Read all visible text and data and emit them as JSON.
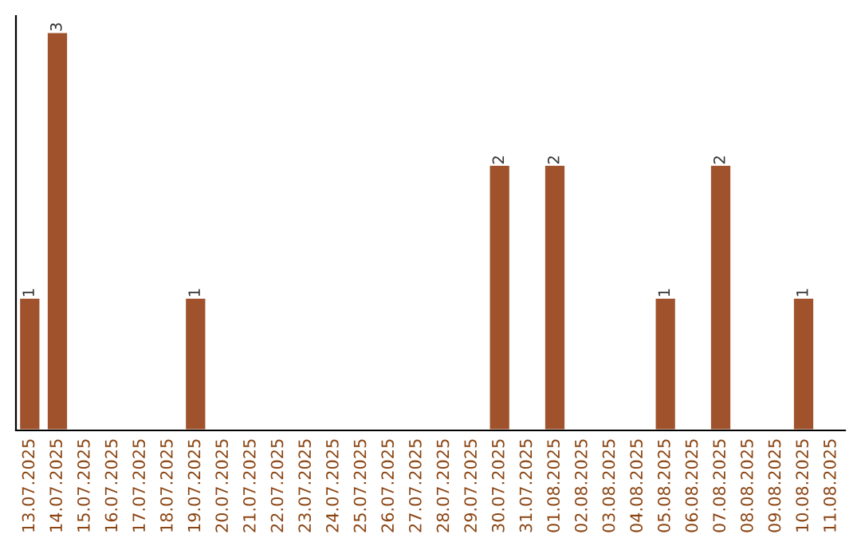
{
  "chart_data": {
    "type": "bar",
    "categories": [
      "13.07.2025",
      "14.07.2025",
      "15.07.2025",
      "16.07.2025",
      "17.07.2025",
      "18.07.2025",
      "19.07.2025",
      "20.07.2025",
      "21.07.2025",
      "22.07.2025",
      "23.07.2025",
      "24.07.2025",
      "25.07.2025",
      "26.07.2025",
      "27.07.2025",
      "28.07.2025",
      "29.07.2025",
      "30.07.2025",
      "31.07.2025",
      "01.08.2025",
      "02.08.2025",
      "03.08.2025",
      "04.08.2025",
      "05.08.2025",
      "06.08.2025",
      "07.08.2025",
      "08.08.2025",
      "09.08.2025",
      "10.08.2025",
      "11.08.2025"
    ],
    "values": [
      1,
      3,
      null,
      null,
      null,
      null,
      1,
      null,
      null,
      null,
      null,
      null,
      null,
      null,
      null,
      null,
      null,
      2,
      null,
      2,
      null,
      null,
      null,
      1,
      null,
      2,
      null,
      null,
      1,
      null
    ],
    "color": "#a0522d",
    "data_labels": true,
    "tick_labels": "x",
    "grid": false,
    "legend": false
  }
}
